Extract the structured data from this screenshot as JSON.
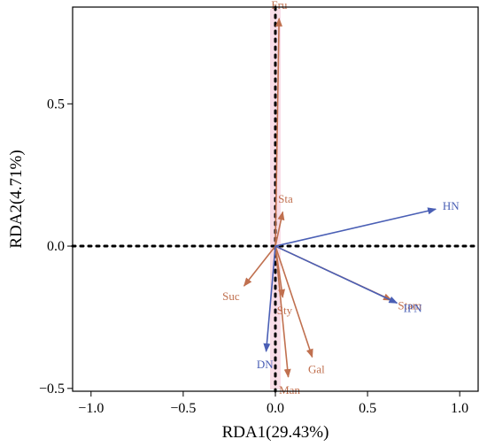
{
  "chart_data": {
    "type": "scatter",
    "subtype": "rda-biplot",
    "title": "",
    "xlabel": "RDA1(29.43%)",
    "ylabel": "RDA2(4.71%)",
    "xlim": [
      -1.1,
      1.1
    ],
    "ylim": [
      -0.51,
      0.84
    ],
    "xticks": [
      -1.0,
      -0.5,
      0.0,
      0.5,
      1.0
    ],
    "xtick_labels": [
      "−1.0",
      "−0.5",
      "0.0",
      "0.5",
      "1.0"
    ],
    "yticks": [
      -0.5,
      0.0,
      0.5
    ],
    "ytick_labels": [
      "−0.5",
      "0.0",
      "0.5"
    ],
    "reference_lines": {
      "x": 0,
      "y": 0,
      "style": "dotted"
    },
    "grid": false,
    "colors": {
      "response": "#c0704f",
      "explanatory": "#4a5fb5",
      "highlight": "#f8d4e2"
    },
    "series": [
      {
        "group": "response",
        "vectors": [
          {
            "label": "Fru",
            "x": 0.02,
            "y": 0.8
          },
          {
            "label": "Sta",
            "x": 0.04,
            "y": 0.12
          },
          {
            "label": "Suc",
            "x": -0.17,
            "y": -0.14
          },
          {
            "label": "Sty",
            "x": 0.04,
            "y": -0.18
          },
          {
            "label": "Stam",
            "x": 0.63,
            "y": -0.19
          },
          {
            "label": "Gal",
            "x": 0.2,
            "y": -0.39
          },
          {
            "label": "Man",
            "x": 0.07,
            "y": -0.46
          }
        ]
      },
      {
        "group": "explanatory",
        "vectors": [
          {
            "label": "HN",
            "x": 0.87,
            "y": 0.13
          },
          {
            "label": "IPN",
            "x": 0.66,
            "y": -0.2
          },
          {
            "label": "DN",
            "x": -0.05,
            "y": -0.37
          }
        ]
      }
    ]
  }
}
